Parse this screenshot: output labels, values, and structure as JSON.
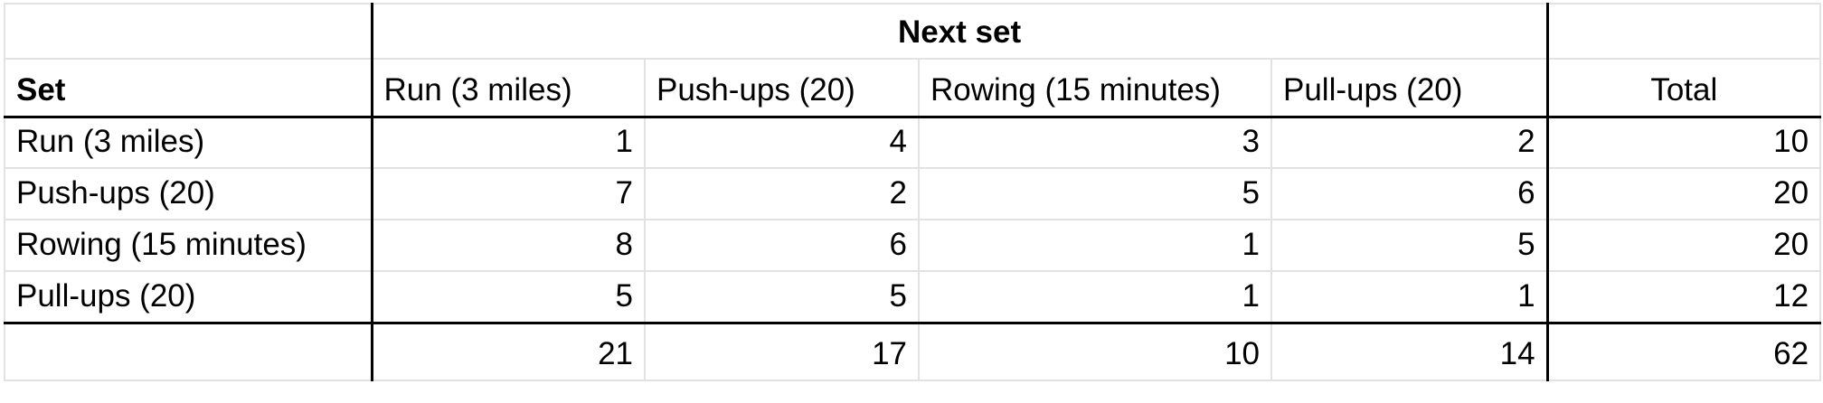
{
  "header_group": "Next set",
  "corner_label": "Set",
  "columns": [
    "Run (3 miles)",
    "Push-ups (20)",
    "Rowing (15 minutes)",
    "Pull-ups (20)"
  ],
  "total_label": "Total",
  "rows": [
    {
      "label": "Run (3 miles)",
      "values": [
        "1",
        "4",
        "3",
        "2"
      ],
      "total": "10"
    },
    {
      "label": "Push-ups (20)",
      "values": [
        "7",
        "2",
        "5",
        "6"
      ],
      "total": "20"
    },
    {
      "label": "Rowing (15 minutes)",
      "values": [
        "8",
        "6",
        "1",
        "5"
      ],
      "total": "20"
    },
    {
      "label": "Pull-ups (20)",
      "values": [
        "5",
        "5",
        "1",
        "1"
      ],
      "total": "12"
    }
  ],
  "column_totals": [
    "21",
    "17",
    "10",
    "14"
  ],
  "grand_total": "62"
}
